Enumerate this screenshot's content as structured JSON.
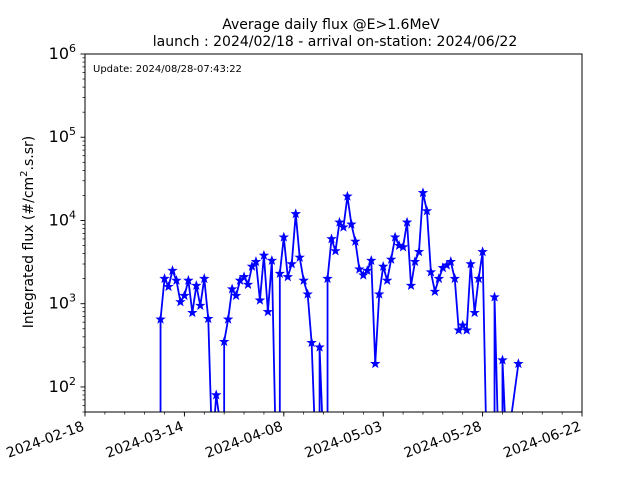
{
  "chart_data": {
    "type": "line",
    "title": "Average daily flux @E>1.6MeV",
    "subtitle": "launch : 2024/02/18 - arrival on-station: 2024/06/22",
    "annotation": "Update: 2024/08/28-07:43:22",
    "xlabel": "",
    "ylabel": "Integrated flux (#/cm².s.sr)",
    "yscale": "log",
    "xlim": [
      "2024-02-18",
      "2024-06-22"
    ],
    "ylim": [
      50,
      1000000
    ],
    "x_ticks": [
      "2024-02-18",
      "2024-03-14",
      "2024-04-08",
      "2024-05-03",
      "2024-05-28",
      "2024-06-22"
    ],
    "y_ticks": [
      {
        "value": 100,
        "base": "10",
        "exp": "2"
      },
      {
        "value": 1000,
        "base": "10",
        "exp": "3"
      },
      {
        "value": 10000,
        "base": "10",
        "exp": "4"
      },
      {
        "value": 100000,
        "base": "10",
        "exp": "5"
      },
      {
        "value": 1000000,
        "base": "10",
        "exp": "6"
      }
    ],
    "grid": false,
    "legend": "none",
    "color": "#0000ff",
    "marker": "star",
    "series": [
      {
        "points": [
          [
            "2024-03-08",
            10
          ],
          [
            "2024-03-08",
            650
          ],
          [
            "2024-03-09",
            2000
          ],
          [
            "2024-03-10",
            1600
          ],
          [
            "2024-03-11",
            2500
          ],
          [
            "2024-03-12",
            1900
          ],
          [
            "2024-03-13",
            1050
          ],
          [
            "2024-03-14",
            1250
          ],
          [
            "2024-03-15",
            1900
          ],
          [
            "2024-03-16",
            780
          ],
          [
            "2024-03-17",
            1650
          ],
          [
            "2024-03-18",
            950
          ],
          [
            "2024-03-19",
            2000
          ],
          [
            "2024-03-20",
            660
          ],
          [
            "2024-03-21",
            10
          ],
          [
            "2024-03-22",
            80
          ],
          [
            "2024-03-24",
            10
          ],
          [
            "2024-03-24",
            350
          ],
          [
            "2024-03-25",
            650
          ],
          [
            "2024-03-26",
            1500
          ],
          [
            "2024-03-27",
            1250
          ],
          [
            "2024-03-28",
            1900
          ],
          [
            "2024-03-29",
            2100
          ],
          [
            "2024-03-30",
            1700
          ],
          [
            "2024-03-31",
            2800
          ],
          [
            "2024-04-01",
            3200
          ],
          [
            "2024-04-02",
            1100
          ],
          [
            "2024-04-03",
            3800
          ],
          [
            "2024-04-04",
            800
          ],
          [
            "2024-04-05",
            3300
          ],
          [
            "2024-04-06",
            10
          ],
          [
            "2024-04-07",
            10
          ],
          [
            "2024-04-07",
            2300
          ],
          [
            "2024-04-08",
            6300
          ],
          [
            "2024-04-09",
            2100
          ],
          [
            "2024-04-10",
            3000
          ],
          [
            "2024-04-11",
            12000
          ],
          [
            "2024-04-12",
            3600
          ],
          [
            "2024-04-13",
            1900
          ],
          [
            "2024-04-14",
            1300
          ],
          [
            "2024-04-15",
            340
          ],
          [
            "2024-04-16",
            10
          ],
          [
            "2024-04-17",
            10
          ],
          [
            "2024-04-17",
            300
          ],
          [
            "2024-04-18",
            10
          ],
          [
            "2024-04-19",
            10
          ],
          [
            "2024-04-19",
            2000
          ],
          [
            "2024-04-20",
            6000
          ],
          [
            "2024-04-21",
            4300
          ],
          [
            "2024-04-22",
            9500
          ],
          [
            "2024-04-23",
            8300
          ],
          [
            "2024-04-24",
            19500
          ],
          [
            "2024-04-25",
            9000
          ],
          [
            "2024-04-26",
            5600
          ],
          [
            "2024-04-27",
            2600
          ],
          [
            "2024-04-28",
            2200
          ],
          [
            "2024-04-29",
            2500
          ],
          [
            "2024-04-30",
            3300
          ],
          [
            "2024-05-01",
            190
          ],
          [
            "2024-05-02",
            1300
          ],
          [
            "2024-05-03",
            2800
          ],
          [
            "2024-05-04",
            1900
          ],
          [
            "2024-05-05",
            3400
          ],
          [
            "2024-05-06",
            6300
          ],
          [
            "2024-05-07",
            5000
          ],
          [
            "2024-05-08",
            4800
          ],
          [
            "2024-05-09",
            9500
          ],
          [
            "2024-05-10",
            1650
          ],
          [
            "2024-05-11",
            3200
          ],
          [
            "2024-05-12",
            4200
          ],
          [
            "2024-05-13",
            21500
          ],
          [
            "2024-05-14",
            13000
          ],
          [
            "2024-05-15",
            2400
          ],
          [
            "2024-05-16",
            1400
          ],
          [
            "2024-05-17",
            2000
          ],
          [
            "2024-05-18",
            2700
          ],
          [
            "2024-05-19",
            2900
          ],
          [
            "2024-05-20",
            3200
          ],
          [
            "2024-05-21",
            2000
          ],
          [
            "2024-05-22",
            480
          ],
          [
            "2024-05-23",
            550
          ],
          [
            "2024-05-24",
            480
          ],
          [
            "2024-05-25",
            3000
          ],
          [
            "2024-05-26",
            780
          ],
          [
            "2024-05-27",
            2000
          ],
          [
            "2024-05-28",
            4200
          ],
          [
            "2024-05-29",
            10
          ],
          [
            "2024-05-31",
            10
          ],
          [
            "2024-05-31",
            1200
          ],
          [
            "2024-06-01",
            10
          ],
          [
            "2024-06-02",
            10
          ],
          [
            "2024-06-02",
            210
          ],
          [
            "2024-06-03",
            10
          ],
          [
            "2024-06-06",
            190
          ]
        ]
      }
    ]
  }
}
